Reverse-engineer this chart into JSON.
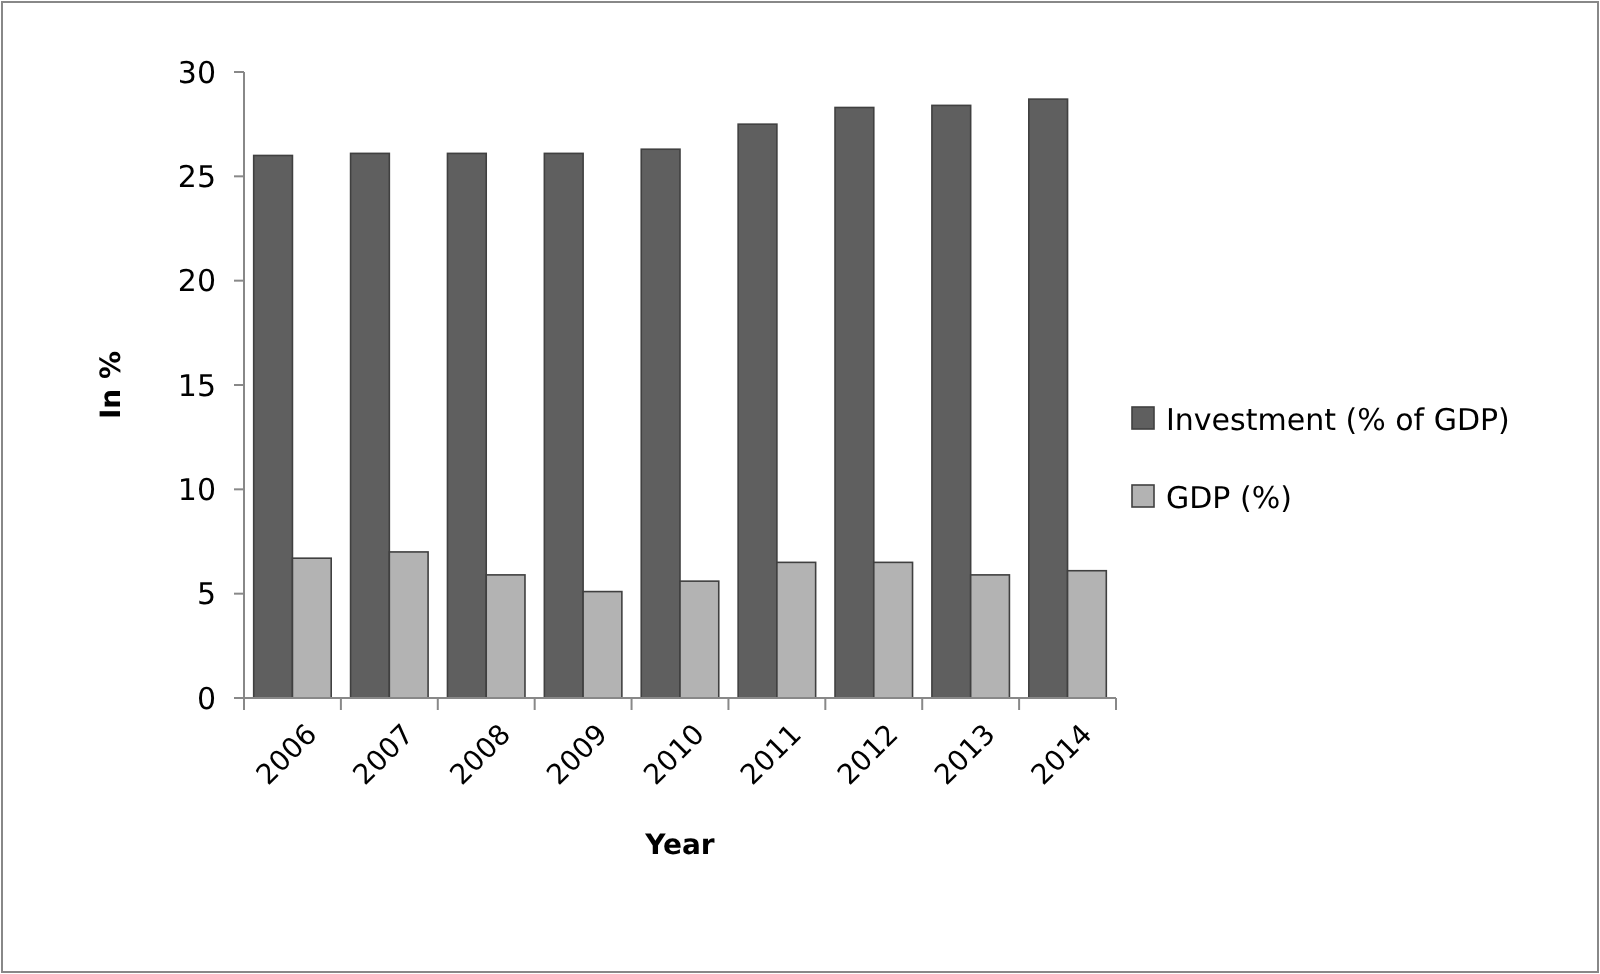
{
  "chart_data": {
    "type": "bar",
    "xlabel": "Year",
    "ylabel": "In %",
    "categories": [
      "2006",
      "2007",
      "2008",
      "2009",
      "2010",
      "2011",
      "2012",
      "2013",
      "2014"
    ],
    "series": [
      {
        "name": "Investment (% of GDP)",
        "color": "#5f5f5f",
        "values": [
          26.0,
          26.1,
          26.1,
          26.1,
          26.3,
          27.5,
          28.3,
          28.4,
          28.7
        ]
      },
      {
        "name": "GDP (%)",
        "color": "#b3b3b3",
        "values": [
          6.7,
          7.0,
          5.9,
          5.1,
          5.6,
          6.5,
          6.5,
          5.9,
          6.1
        ]
      }
    ],
    "ylim": [
      0,
      30
    ],
    "yticks": [
      0,
      5,
      10,
      15,
      20,
      25,
      30
    ],
    "grid": false,
    "legend": "right"
  }
}
